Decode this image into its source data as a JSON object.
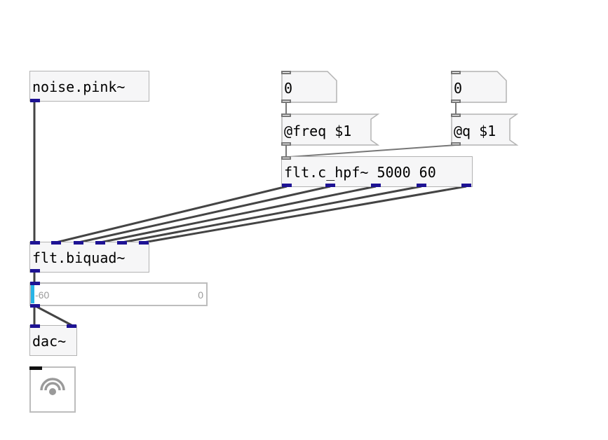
{
  "objects": {
    "noise": "noise.pink~",
    "hpf": "flt.c_hpf~ 5000 60",
    "biquad": "flt.biquad~",
    "dac": "dac~"
  },
  "numbers": {
    "freq_num": "0",
    "q_num": "0"
  },
  "messages": {
    "freq_msg": "@freq $1",
    "q_msg": "@q $1"
  },
  "meter": {
    "min_label": "-60",
    "max_label": "0",
    "level_fraction": 0.02,
    "bar_color": "#28b4e6"
  },
  "dsp_toggle": {
    "icon": "speaker-icon"
  },
  "colors": {
    "signal_port": "#1e1394",
    "wire": "#444444",
    "box_border": "#b3b3b3",
    "box_bg": "#f6f6f7"
  }
}
